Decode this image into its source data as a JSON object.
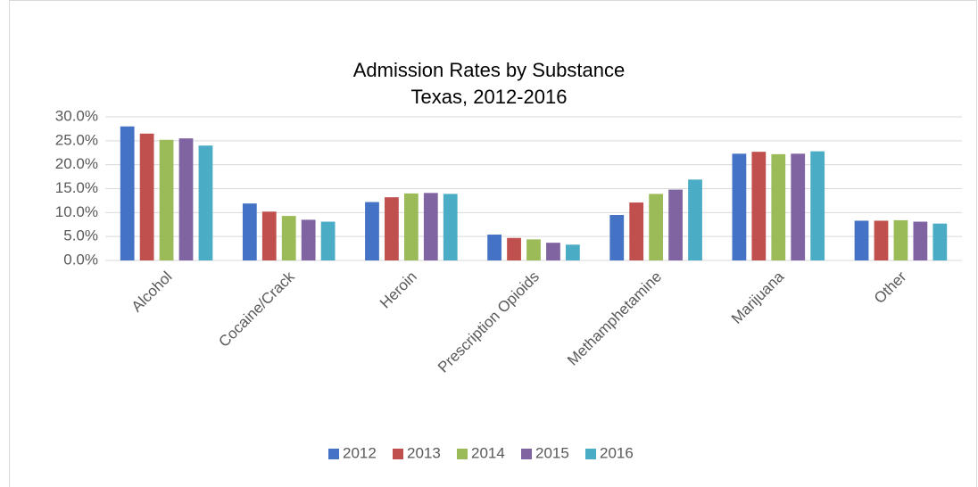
{
  "chart_data": {
    "type": "bar",
    "title": "Admission Rates by Substance",
    "subtitle": "Texas, 2012-2016",
    "categories": [
      "Alcohol",
      "Cocaine/Crack",
      "Heroin",
      "Prescription Opioids",
      "Methamphetamine",
      "Marijuana",
      "Other"
    ],
    "series": [
      {
        "name": "2012",
        "color": "#4472c4",
        "values": [
          28.0,
          11.9,
          12.2,
          5.4,
          9.5,
          22.3,
          8.3
        ]
      },
      {
        "name": "2013",
        "color": "#c0504d",
        "values": [
          26.5,
          10.2,
          13.2,
          4.7,
          12.1,
          22.7,
          8.3
        ]
      },
      {
        "name": "2014",
        "color": "#9bbb59",
        "values": [
          25.2,
          9.3,
          14.0,
          4.4,
          13.9,
          22.2,
          8.4
        ]
      },
      {
        "name": "2015",
        "color": "#8064a2",
        "values": [
          25.5,
          8.5,
          14.1,
          3.7,
          14.8,
          22.3,
          8.1
        ]
      },
      {
        "name": "2016",
        "color": "#4bacc6",
        "values": [
          24.0,
          8.1,
          13.9,
          3.3,
          16.9,
          22.8,
          7.7
        ]
      }
    ],
    "ylim": [
      0,
      30
    ],
    "yticks": [
      {
        "value": 0,
        "label": "0.0%"
      },
      {
        "value": 5,
        "label": "5.0%"
      },
      {
        "value": 10,
        "label": "10.0%"
      },
      {
        "value": 15,
        "label": "15.0%"
      },
      {
        "value": 20,
        "label": "20.0%"
      },
      {
        "value": 25,
        "label": "25.0%"
      },
      {
        "value": 30,
        "label": "30.0%"
      }
    ],
    "grid": true,
    "legend": "bottom"
  }
}
